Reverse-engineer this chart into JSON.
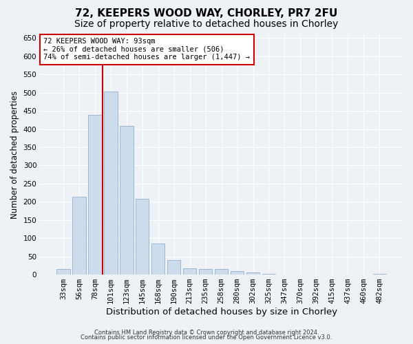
{
  "title_line1": "72, KEEPERS WOOD WAY, CHORLEY, PR7 2FU",
  "title_line2": "Size of property relative to detached houses in Chorley",
  "xlabel": "Distribution of detached houses by size in Chorley",
  "ylabel": "Number of detached properties",
  "footer_line1": "Contains HM Land Registry data © Crown copyright and database right 2024.",
  "footer_line2": "Contains public sector information licensed under the Open Government Licence v3.0.",
  "categories": [
    "33sqm",
    "56sqm",
    "78sqm",
    "101sqm",
    "123sqm",
    "145sqm",
    "168sqm",
    "190sqm",
    "213sqm",
    "235sqm",
    "258sqm",
    "280sqm",
    "302sqm",
    "325sqm",
    "347sqm",
    "370sqm",
    "392sqm",
    "415sqm",
    "437sqm",
    "460sqm",
    "482sqm"
  ],
  "values": [
    15,
    213,
    438,
    503,
    408,
    208,
    85,
    40,
    18,
    15,
    15,
    10,
    5,
    2,
    1,
    1,
    0,
    0,
    0,
    0,
    2
  ],
  "bar_color": "#ccdcec",
  "bar_edgecolor": "#90b0cc",
  "vline_x": 2.5,
  "vline_color": "#cc0000",
  "annotation_text": "72 KEEPERS WOOD WAY: 93sqm\n← 26% of detached houses are smaller (506)\n74% of semi-detached houses are larger (1,447) →",
  "annotation_box_facecolor": "#ffffff",
  "annotation_box_edgecolor": "#cc0000",
  "ylim": [
    0,
    660
  ],
  "yticks": [
    0,
    50,
    100,
    150,
    200,
    250,
    300,
    350,
    400,
    450,
    500,
    550,
    600,
    650
  ],
  "background_color": "#eef2f7",
  "grid_color": "#ffffff",
  "title_fontsize": 11,
  "subtitle_fontsize": 10,
  "tick_fontsize": 7.5,
  "ylabel_fontsize": 8.5,
  "xlabel_fontsize": 9.5,
  "footer_fontsize": 6.0
}
